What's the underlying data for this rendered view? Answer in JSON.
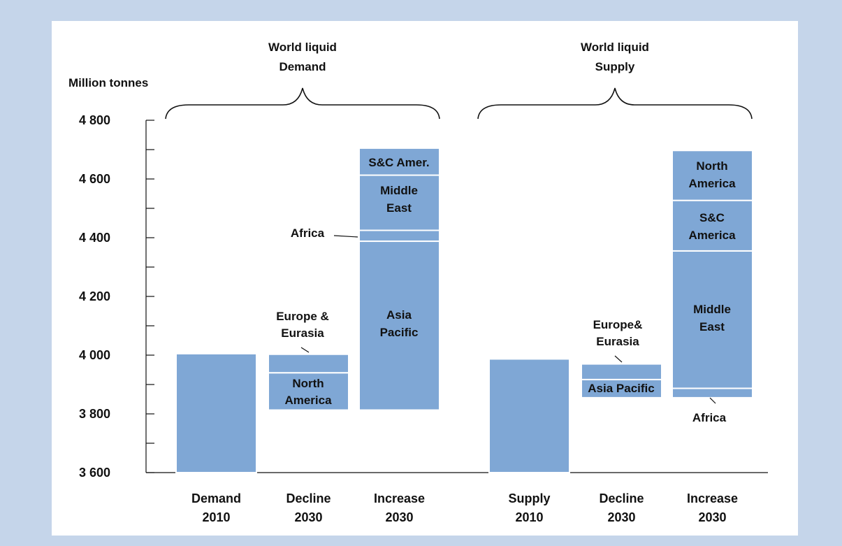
{
  "chart_data": {
    "type": "bar",
    "ylabel": "Million tonnes",
    "ylim": [
      3600,
      4800
    ],
    "yticks": [
      "3 600",
      "3 800",
      "4 000",
      "4 200",
      "4 400",
      "4 600",
      "4 800"
    ],
    "groups": [
      {
        "label_line1": "World liquid",
        "label_line2": "Demand"
      },
      {
        "label_line1": "World liquid",
        "label_line2": "Supply"
      }
    ],
    "categories": [
      {
        "line1": "Demand",
        "line2": "2010"
      },
      {
        "line1": "Decline",
        "line2": "2030"
      },
      {
        "line1": "Increase",
        "line2": "2030"
      },
      {
        "line1": "Supply",
        "line2": "2010"
      },
      {
        "line1": "Decline",
        "line2": "2030"
      },
      {
        "line1": "Increase",
        "line2": "2030"
      }
    ],
    "bars": [
      {
        "segments": [
          {
            "from": 3600,
            "to": 4005,
            "label": ""
          }
        ]
      },
      {
        "segments": [
          {
            "from": 3813,
            "to": 3940,
            "label": "North America"
          },
          {
            "from": 3940,
            "to": 4003,
            "label": "Europe & Eurasia"
          }
        ]
      },
      {
        "segments": [
          {
            "from": 3813,
            "to": 4388,
            "label": "Asia Pacific"
          },
          {
            "from": 4388,
            "to": 4425,
            "label": "Africa"
          },
          {
            "from": 4425,
            "to": 4613,
            "label": "Middle East"
          },
          {
            "from": 4613,
            "to": 4705,
            "label": "S&C Amer."
          }
        ]
      },
      {
        "segments": [
          {
            "from": 3600,
            "to": 3987,
            "label": ""
          }
        ]
      },
      {
        "segments": [
          {
            "from": 3855,
            "to": 3917,
            "label": "Asia Pacific"
          },
          {
            "from": 3917,
            "to": 3970,
            "label": "Europe& Eurasia"
          }
        ]
      },
      {
        "segments": [
          {
            "from": 3855,
            "to": 3887,
            "label": "Africa"
          },
          {
            "from": 3887,
            "to": 4355,
            "label": "Middle East"
          },
          {
            "from": 4355,
            "to": 4527,
            "label": "S&C America"
          },
          {
            "from": 4527,
            "to": 4697,
            "label": "North America"
          }
        ]
      }
    ],
    "colors": {
      "bar": "#7fa7d5",
      "separator": "#ffffff",
      "background": "#c5d5ea"
    }
  }
}
